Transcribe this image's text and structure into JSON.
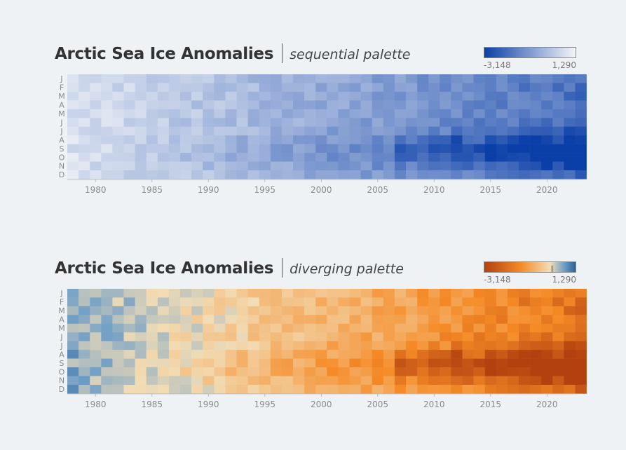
{
  "charts": [
    {
      "title": "Arctic Sea Ice Anomalies",
      "subtitle": "sequential palette",
      "legend": {
        "min_label": "-3,148",
        "max_label": "1,290"
      },
      "colors": {
        "low": "#0b3fa8",
        "high": "#f3f5f8"
      }
    },
    {
      "title": "Arctic Sea Ice Anomalies",
      "subtitle": "diverging palette",
      "legend": {
        "min_label": "-3,148",
        "max_label": "1,290"
      },
      "colors": {
        "low": "#b3410f",
        "mid_low": "#f58a26",
        "mid": "#f2ddb6",
        "high": "#6b9cc7",
        "max": "#2f5f91"
      }
    }
  ],
  "chart_data": [
    {
      "type": "heatmap",
      "title": "Arctic Sea Ice Anomalies",
      "subtitle": "sequential palette",
      "palette": "sequential",
      "x": "years 1978-2023",
      "x_range": [
        1978,
        2023
      ],
      "x_ticks": [
        "1980",
        "1985",
        "1990",
        "1995",
        "2000",
        "2005",
        "2010",
        "2015",
        "2020"
      ],
      "y_labels": [
        "J",
        "F",
        "M",
        "A",
        "M",
        "J",
        "J",
        "A",
        "S",
        "O",
        "N",
        "D"
      ],
      "value_range": [
        -3148,
        1290
      ],
      "note": "cell values approximate: mild positive anomalies pre-1995, increasingly negative after 2000 with summer minima (Aug-Oct) most negative around 2007, 2012, 2015-2020"
    },
    {
      "type": "heatmap",
      "title": "Arctic Sea Ice Anomalies",
      "subtitle": "diverging palette",
      "palette": "diverging",
      "x": "years 1978-2023",
      "x_range": [
        1978,
        2023
      ],
      "x_ticks": [
        "1980",
        "1985",
        "1990",
        "1995",
        "2000",
        "2005",
        "2010",
        "2015",
        "2020"
      ],
      "y_labels": [
        "J",
        "F",
        "M",
        "A",
        "M",
        "J",
        "J",
        "A",
        "S",
        "O",
        "N",
        "D"
      ],
      "value_range": [
        -3148,
        1290
      ],
      "note": "same data as the sequential chart"
    }
  ]
}
